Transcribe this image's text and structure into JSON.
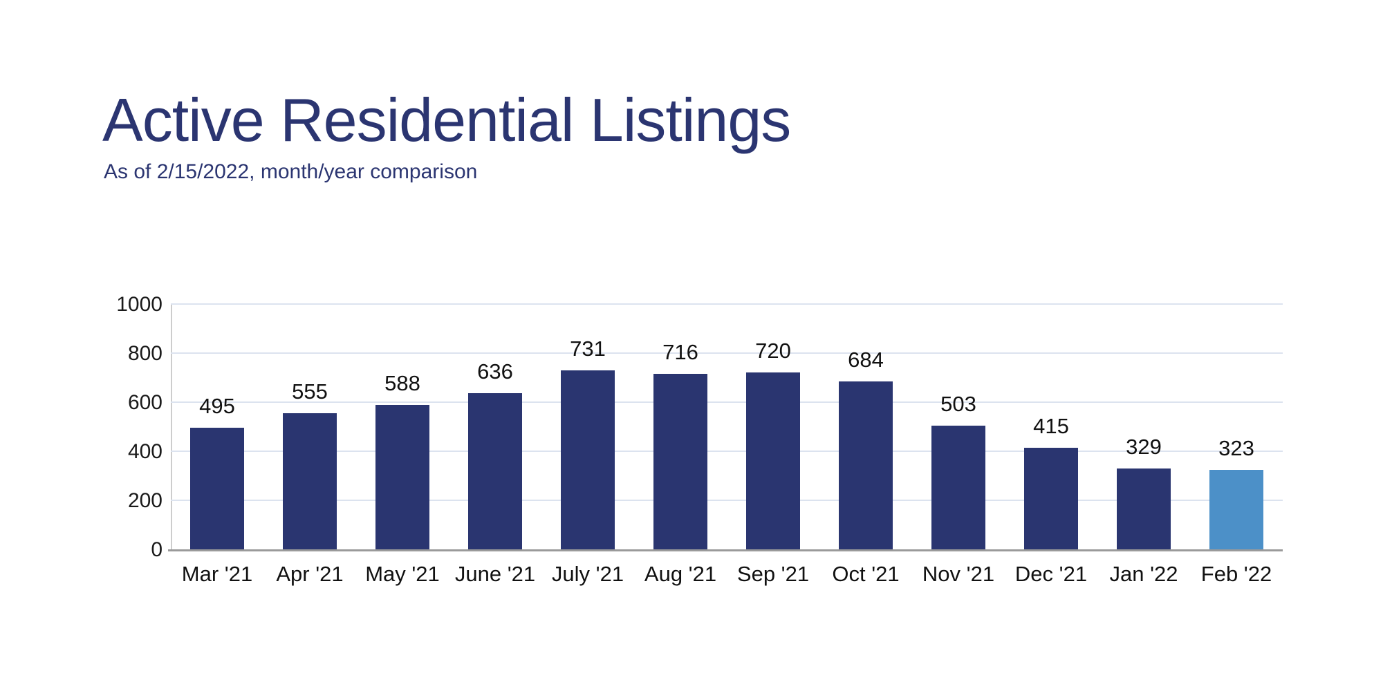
{
  "header": {
    "title": "Active Residential Listings",
    "subtitle": "As of 2/15/2022, month/year comparison",
    "title_color": "#2b3571"
  },
  "chart_data": {
    "type": "bar",
    "title": "Active Residential Listings",
    "subtitle": "As of 2/15/2022, month/year comparison",
    "categories": [
      "Mar '21",
      "Apr '21",
      "May '21",
      "June '21",
      "July '21",
      "Aug '21",
      "Sep '21",
      "Oct '21",
      "Nov '21",
      "Dec '21",
      "Jan '22",
      "Feb '22"
    ],
    "values": [
      495,
      555,
      588,
      636,
      731,
      716,
      720,
      684,
      503,
      415,
      329,
      323
    ],
    "data_labels": true,
    "highlight_index": 11,
    "colors": {
      "bar": "#2a3570",
      "highlight": "#4c90c8",
      "gridline": "#dce3ef",
      "x_axis": "#9a9a9a",
      "y_axis": "#cdcdcd",
      "tick_text": "#1a1a1a"
    },
    "xlabel": "",
    "ylabel": "",
    "ylim": [
      0,
      1000
    ],
    "yticks": [
      0,
      200,
      400,
      600,
      800,
      1000
    ],
    "grid": "horizontal",
    "legend_position": "none"
  }
}
